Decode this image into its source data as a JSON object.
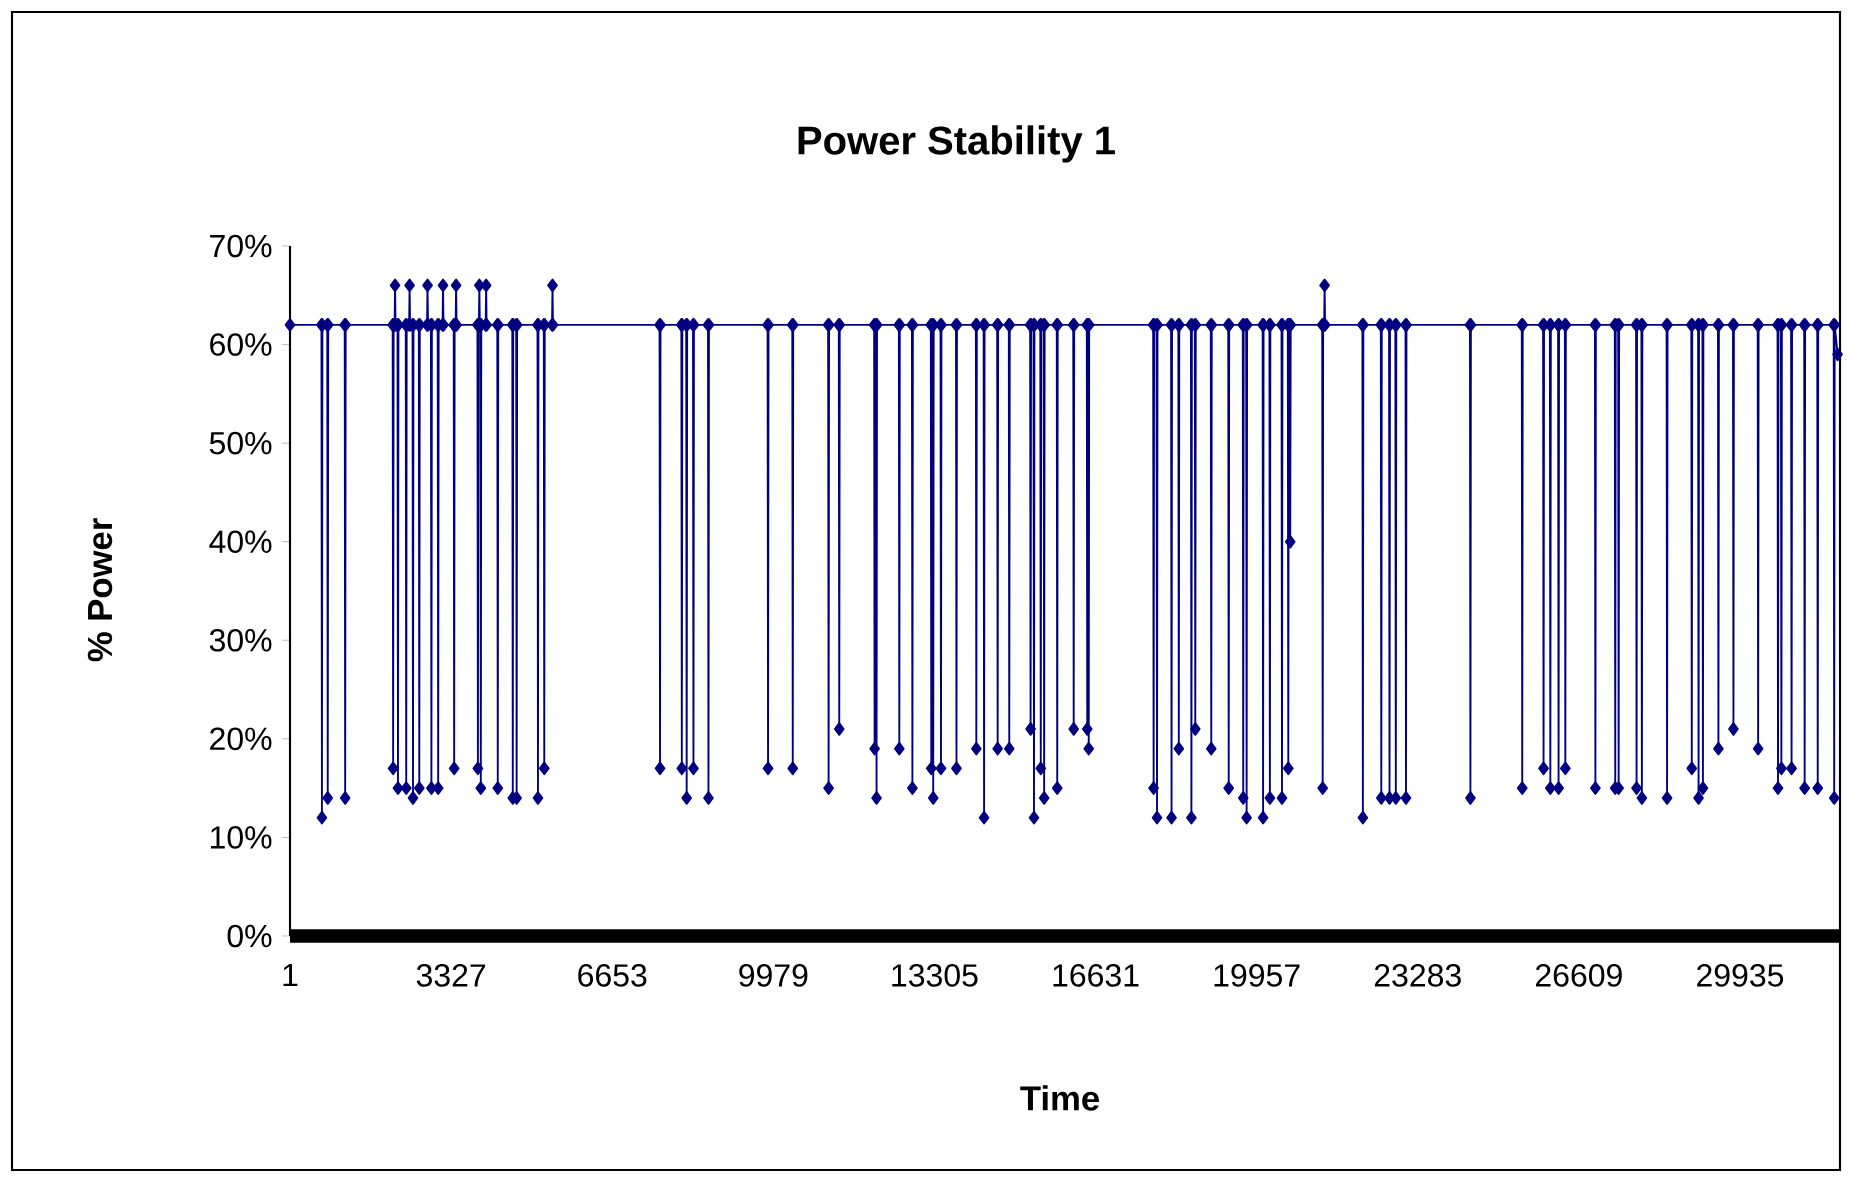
{
  "chart_data": {
    "type": "line",
    "title": "Power Stability 1",
    "xlabel": "Time",
    "ylabel": "% Power",
    "xlim": [
      1,
      32000
    ],
    "xticks": [
      1,
      3327,
      6653,
      9979,
      13305,
      16631,
      19957,
      23283,
      26609,
      29935
    ],
    "ylim": [
      0,
      70
    ],
    "yticks": [
      {
        "value": 0,
        "label": "0%"
      },
      {
        "value": 10,
        "label": "10%"
      },
      {
        "value": 20,
        "label": "20%"
      },
      {
        "value": 30,
        "label": "30%"
      },
      {
        "value": 40,
        "label": "40%"
      },
      {
        "value": 50,
        "label": "50%"
      },
      {
        "value": 60,
        "label": "60%"
      },
      {
        "value": 70,
        "label": "70%"
      }
    ],
    "marker": "diamond",
    "series": [
      {
        "color": "#000080",
        "x": [
          1,
          650,
          660,
          670,
          770,
          780,
          790,
          1130,
          1140,
          1150,
          2120,
          2130,
          2140,
          2160,
          2170,
          2180,
          2220,
          2230,
          2240,
          2390,
          2400,
          2410,
          2460,
          2470,
          2480,
          2530,
          2540,
          2550,
          2660,
          2670,
          2680,
          2830,
          2840,
          2850,
          2910,
          2920,
          2930,
          3050,
          3060,
          3070,
          3150,
          3160,
          3170,
          3380,
          3390,
          3400,
          3420,
          3430,
          3440,
          3870,
          3880,
          3890,
          3900,
          3910,
          3920,
          3930,
          3940,
          3950,
          4040,
          4050,
          4060,
          4280,
          4290,
          4300,
          4590,
          4600,
          4610,
          4670,
          4680,
          4690,
          5110,
          5120,
          5130,
          5240,
          5250,
          5260,
          5410,
          5420,
          5430,
          7630,
          7640,
          7650,
          8080,
          8090,
          8100,
          8180,
          8190,
          8200,
          8320,
          8330,
          8340,
          8630,
          8640,
          8650,
          9860,
          9870,
          9880,
          10370,
          10380,
          10390,
          11110,
          11120,
          11130,
          11330,
          11340,
          11350,
          12060,
          12070,
          12080,
          12100,
          12110,
          12120,
          12570,
          12580,
          12590,
          12840,
          12850,
          12860,
          13230,
          13240,
          13250,
          13270,
          13280,
          13290,
          13430,
          13440,
          13450,
          13750,
          13760,
          13770,
          14160,
          14170,
          14180,
          14320,
          14330,
          14340,
          14600,
          14610,
          14620,
          14840,
          14850,
          14860,
          15280,
          15290,
          15300,
          15350,
          15360,
          15370,
          15490,
          15500,
          15510,
          15560,
          15570,
          15580,
          15830,
          15840,
          15850,
          16170,
          16180,
          16190,
          16450,
          16460,
          16470,
          16480,
          16490,
          16500,
          17820,
          17830,
          17840,
          17890,
          17900,
          17910,
          18190,
          18200,
          18210,
          18340,
          18350,
          18360,
          18600,
          18610,
          18620,
          18680,
          18690,
          18700,
          19010,
          19020,
          19030,
          19370,
          19380,
          19390,
          19670,
          19680,
          19690,
          19740,
          19750,
          19760,
          20080,
          20090,
          20100,
          20220,
          20230,
          20240,
          20470,
          20480,
          20490,
          20600,
          20610,
          20620,
          20640,
          20650,
          20660,
          21310,
          21320,
          21330,
          21350,
          21360,
          21370,
          22140,
          22150,
          22160,
          22520,
          22530,
          22540,
          22690,
          22700,
          22710,
          22820,
          22830,
          22840,
          23030,
          23040,
          23050,
          24360,
          24370,
          24380,
          25430,
          25440,
          25450,
          25870,
          25880,
          25890,
          26010,
          26020,
          26030,
          26180,
          26190,
          26200,
          26320,
          26330,
          26340,
          26940,
          26950,
          26960,
          27350,
          27360,
          27370,
          27420,
          27430,
          27440,
          27790,
          27800,
          27810,
          27900,
          27910,
          27920,
          28420,
          28430,
          28440,
          28930,
          28940,
          28950,
          29070,
          29080,
          29090,
          29160,
          29170,
          29180,
          29480,
          29490,
          29500,
          29790,
          29800,
          29810,
          30300,
          30310,
          30320,
          30710,
          30720,
          30730,
          30780,
          30790,
          30800,
          30990,
          31000,
          31010,
          31260,
          31270,
          31280,
          31530,
          31540,
          31550,
          31870,
          31880,
          31890,
          31950
        ],
        "values": [
          62,
          62,
          12,
          62,
          62,
          14,
          62,
          62,
          14,
          62,
          62,
          17,
          62,
          62,
          66,
          62,
          62,
          15,
          62,
          62,
          15,
          62,
          62,
          66,
          62,
          62,
          14,
          62,
          62,
          15,
          62,
          62,
          66,
          62,
          62,
          15,
          62,
          62,
          15,
          62,
          62,
          66,
          62,
          62,
          17,
          62,
          62,
          66,
          62,
          62,
          17,
          62,
          62,
          66,
          62,
          62,
          15,
          62,
          62,
          66,
          62,
          62,
          15,
          62,
          62,
          14,
          62,
          62,
          14,
          62,
          62,
          14,
          62,
          62,
          17,
          62,
          62,
          66,
          62,
          62,
          17,
          62,
          62,
          17,
          62,
          62,
          14,
          62,
          62,
          17,
          62,
          62,
          14,
          62,
          62,
          17,
          62,
          62,
          17,
          62,
          62,
          15,
          62,
          62,
          21,
          62,
          62,
          19,
          62,
          62,
          14,
          62,
          62,
          19,
          62,
          62,
          15,
          62,
          62,
          17,
          62,
          62,
          14,
          62,
          62,
          17,
          62,
          62,
          17,
          62,
          62,
          19,
          62,
          62,
          12,
          62,
          62,
          19,
          62,
          62,
          19,
          62,
          62,
          21,
          62,
          62,
          12,
          62,
          62,
          17,
          62,
          62,
          14,
          62,
          62,
          15,
          62,
          62,
          21,
          62,
          62,
          21,
          62,
          62,
          19,
          62,
          62,
          15,
          62,
          62,
          12,
          62,
          62,
          12,
          62,
          62,
          19,
          62,
          62,
          12,
          62,
          62,
          21,
          62,
          62,
          19,
          62,
          62,
          15,
          62,
          62,
          14,
          62,
          62,
          12,
          62,
          62,
          12,
          62,
          62,
          14,
          62,
          62,
          14,
          62,
          62,
          17,
          62,
          62,
          40,
          62,
          62,
          15,
          62,
          62,
          66,
          62,
          62,
          12,
          62,
          62,
          14,
          62,
          62,
          14,
          62,
          62,
          14,
          62,
          62,
          14,
          62,
          62,
          14,
          62,
          62,
          15,
          62,
          62,
          17,
          62,
          62,
          15,
          62,
          62,
          15,
          62,
          62,
          17,
          62,
          62,
          15,
          62,
          62,
          15,
          62,
          62,
          15,
          62,
          62,
          15,
          62,
          62,
          14,
          62,
          62,
          14,
          62,
          62,
          17,
          62,
          62,
          14,
          62,
          62,
          15,
          62,
          62,
          19,
          62,
          62,
          21,
          62,
          62,
          19,
          62,
          62,
          15,
          62,
          62,
          17,
          62,
          62,
          17,
          62,
          62,
          15,
          62,
          62,
          15,
          62,
          62,
          14,
          62,
          59
        ]
      }
    ]
  }
}
